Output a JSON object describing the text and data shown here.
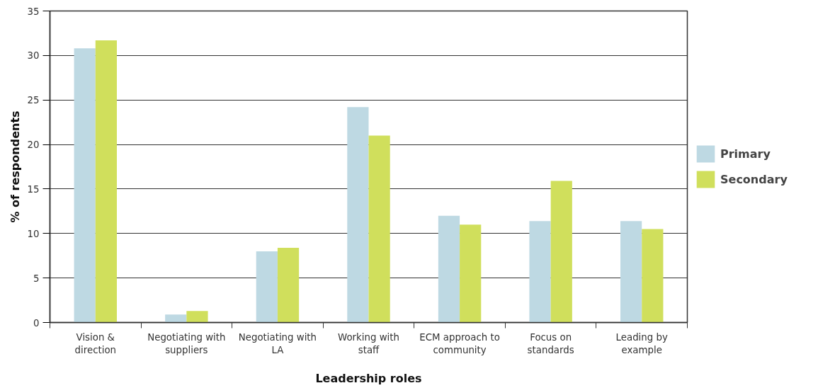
{
  "chart_data": {
    "type": "bar",
    "xlabel": "Leadership roles",
    "ylabel": "% of respondents",
    "categories": [
      "Vision & direction",
      "Negotiating with suppliers",
      "Negotiating with LA",
      "Working with staff",
      "ECM approach to community",
      "Focus on standards",
      "Leading by example"
    ],
    "series": [
      {
        "name": "Primary",
        "color": "#bed9e3",
        "values": [
          30.8,
          0.9,
          8.0,
          24.2,
          12.0,
          11.4,
          11.4
        ]
      },
      {
        "name": "Secondary",
        "color": "#d0df5c",
        "values": [
          31.7,
          1.3,
          8.4,
          21.0,
          11.0,
          15.9,
          10.5
        ]
      }
    ],
    "ylim": [
      0,
      35
    ],
    "yticks": [
      0,
      5,
      10,
      15,
      20,
      25,
      30,
      35
    ],
    "grid": "y",
    "legend": "right"
  }
}
